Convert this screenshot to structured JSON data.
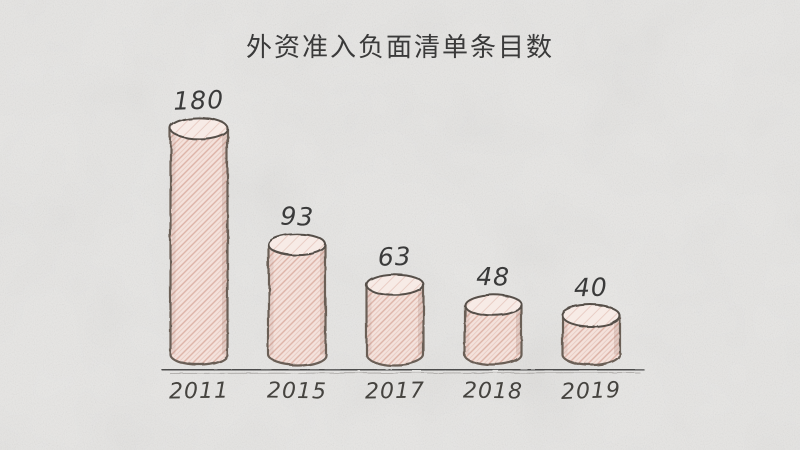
{
  "chart_data": {
    "type": "bar",
    "variant": "hand-drawn-cylinders-on-paper",
    "title": "外资准入负面清单条目数",
    "categories": [
      "2011",
      "2015",
      "2017",
      "2018",
      "2019"
    ],
    "values": [
      180,
      93,
      63,
      48,
      40
    ],
    "data_labels": [
      "180",
      "93",
      "63",
      "48",
      "40"
    ],
    "xlabel": "",
    "ylabel": "",
    "legend": false,
    "grid": false,
    "ylim": [
      0,
      200
    ],
    "colors": {
      "background": "#e8e7e5",
      "bar_fill": "#f4e2dc",
      "bar_fill_top": "#f7ebe6",
      "bar_hatch": "#dcb2a6",
      "bar_outline": "#6b5e56",
      "top_outline": "#56504a",
      "axis": "#4c4c4c",
      "axis_echo": "#8f8b88",
      "value_text": "#3a3a3a",
      "category_text": "#45433f",
      "title_text": "#3a3a3a"
    }
  }
}
